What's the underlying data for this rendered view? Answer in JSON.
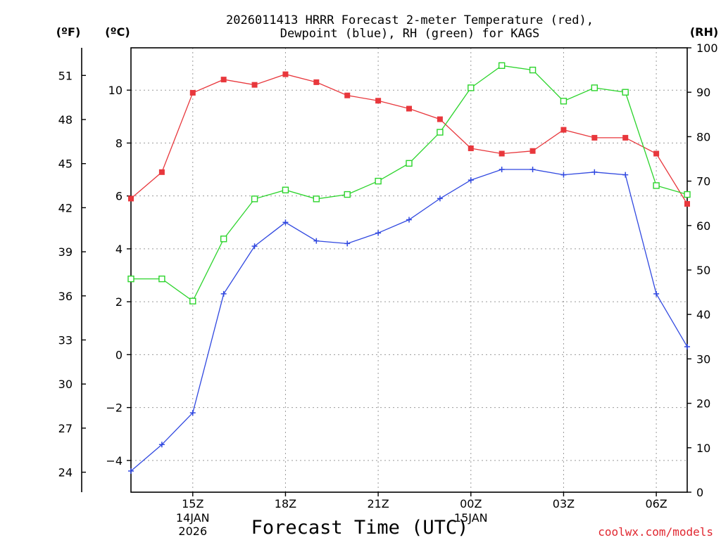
{
  "chart_data": {
    "type": "line",
    "title_line1": "2026011413 HRRR Forecast 2-meter Temperature (red),",
    "title_line2": "Dewpoint (blue), RH (green) for KAGS",
    "xlabel": "Forecast Time (UTC)",
    "left_unit_f": "(ºF)",
    "left_unit_c": "(ºC)",
    "right_unit": "(RH)",
    "credit": "coolwx.com/models",
    "x_hours": [
      13,
      14,
      15,
      16,
      17,
      18,
      19,
      20,
      21,
      22,
      23,
      24,
      25,
      26,
      27,
      28,
      29,
      30,
      31
    ],
    "x_ticks": [
      {
        "hour": 15,
        "label": "15Z",
        "sub1": "14JAN",
        "sub2": "2026"
      },
      {
        "hour": 18,
        "label": "18Z",
        "sub1": "",
        "sub2": ""
      },
      {
        "hour": 21,
        "label": "21Z",
        "sub1": "",
        "sub2": ""
      },
      {
        "hour": 24,
        "label": "00Z",
        "sub1": "15JAN",
        "sub2": ""
      },
      {
        "hour": 27,
        "label": "03Z",
        "sub1": "",
        "sub2": ""
      },
      {
        "hour": 30,
        "label": "06Z",
        "sub1": "",
        "sub2": ""
      }
    ],
    "xlim": [
      13,
      31
    ],
    "ylim_c": [
      -5.2,
      11.6
    ],
    "ylim_rh": [
      0,
      100
    ],
    "c_ticks": [
      -4,
      -2,
      0,
      2,
      4,
      6,
      8,
      10
    ],
    "f_ticks": [
      24,
      27,
      30,
      33,
      36,
      39,
      42,
      45,
      48,
      51
    ],
    "rh_ticks": [
      0,
      10,
      20,
      30,
      40,
      50,
      60,
      70,
      80,
      90,
      100
    ],
    "grid": "dotted",
    "series": [
      {
        "name": "2-meter Temperature",
        "color": "#e8373c",
        "marker": "filled-square",
        "axis": "celsius",
        "values": [
          5.9,
          6.9,
          9.9,
          10.4,
          10.2,
          10.6,
          10.3,
          9.8,
          9.6,
          9.3,
          8.9,
          7.8,
          7.6,
          7.7,
          8.5,
          8.2,
          8.2,
          7.6,
          5.7
        ]
      },
      {
        "name": "Dewpoint",
        "color": "#3048e0",
        "marker": "plus",
        "axis": "celsius",
        "values": [
          -4.4,
          -3.4,
          -2.2,
          2.3,
          4.1,
          5.0,
          4.3,
          4.2,
          4.6,
          5.1,
          5.9,
          6.6,
          7.0,
          7.0,
          6.8,
          6.9,
          6.8,
          2.3,
          0.3
        ]
      },
      {
        "name": "Relative Humidity",
        "color": "#2cd42c",
        "marker": "open-square",
        "axis": "rh",
        "values": [
          48,
          48,
          43,
          57,
          66,
          68,
          66,
          67,
          70,
          74,
          81,
          91,
          96,
          95,
          88,
          91,
          90,
          69,
          67
        ]
      }
    ]
  }
}
